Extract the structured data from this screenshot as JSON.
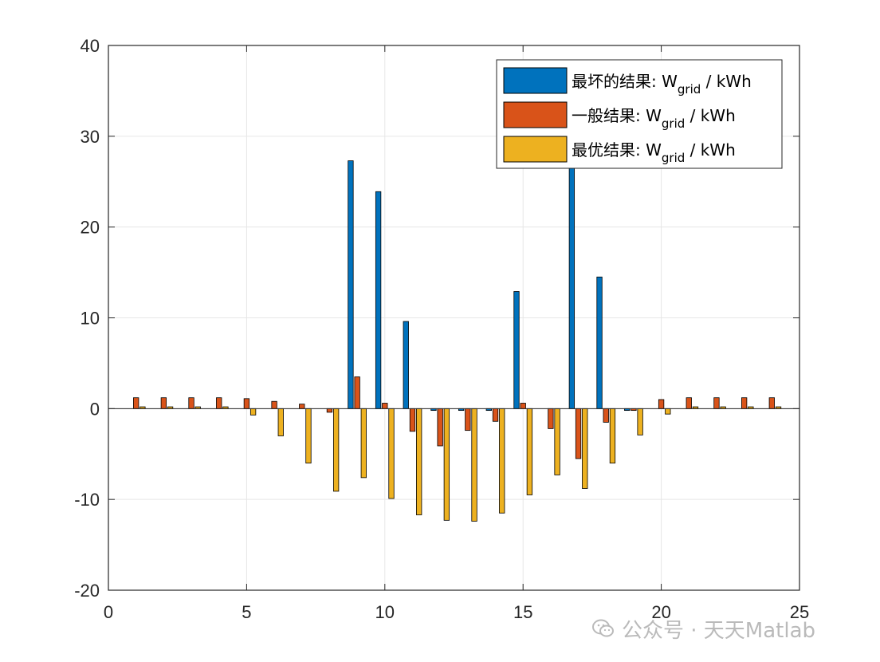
{
  "chart_data": {
    "type": "bar",
    "xlim": [
      0,
      25
    ],
    "ylim": [
      -20,
      40
    ],
    "x_ticks": [
      0,
      5,
      10,
      15,
      20,
      25
    ],
    "y_ticks": [
      -20,
      -10,
      0,
      10,
      20,
      30,
      40
    ],
    "grid": true,
    "legend_position": "top-right",
    "categories": [
      1,
      2,
      3,
      4,
      5,
      6,
      7,
      8,
      9,
      10,
      11,
      12,
      13,
      14,
      15,
      16,
      17,
      18,
      19,
      20,
      21,
      22,
      23,
      24
    ],
    "series": [
      {
        "name": "最坏的结果: W_grid / kWh",
        "name_main": "最坏的结果: W",
        "name_sub": "grid",
        "name_tail": " / kWh",
        "color": "#0072BD",
        "values": [
          0,
          0,
          0,
          0,
          0,
          0,
          0,
          0,
          27.3,
          23.9,
          9.6,
          -0.2,
          -0.2,
          -0.2,
          12.9,
          0,
          26.5,
          14.5,
          -0.2,
          0,
          0,
          0,
          0,
          0
        ]
      },
      {
        "name": "一般结果: W_grid / kWh",
        "name_main": "一般结果: W",
        "name_sub": "grid",
        "name_tail": " / kWh",
        "color": "#D95319",
        "values": [
          1.2,
          1.2,
          1.2,
          1.2,
          1.1,
          0.8,
          0.5,
          -0.4,
          3.5,
          0.6,
          -2.5,
          -4.1,
          -2.4,
          -1.4,
          0.6,
          -2.2,
          -5.5,
          -1.5,
          -0.2,
          1.0,
          1.2,
          1.2,
          1.2,
          1.2
        ]
      },
      {
        "name": "最优结果: W_grid / kWh",
        "name_main": "最优结果: W",
        "name_sub": "grid",
        "name_tail": " / kWh",
        "color": "#EDB120",
        "values": [
          0.2,
          0.2,
          0.2,
          0.2,
          -0.7,
          -3.0,
          -6.0,
          -9.1,
          -7.6,
          -9.9,
          -11.7,
          -12.3,
          -12.4,
          -11.5,
          -9.5,
          -7.3,
          -8.8,
          -6.0,
          -2.9,
          -0.6,
          0.2,
          0.2,
          0.2,
          0.2
        ]
      }
    ]
  },
  "watermark": {
    "icon": "wechat-icon",
    "text": "公众号 · 天天Matlab"
  }
}
